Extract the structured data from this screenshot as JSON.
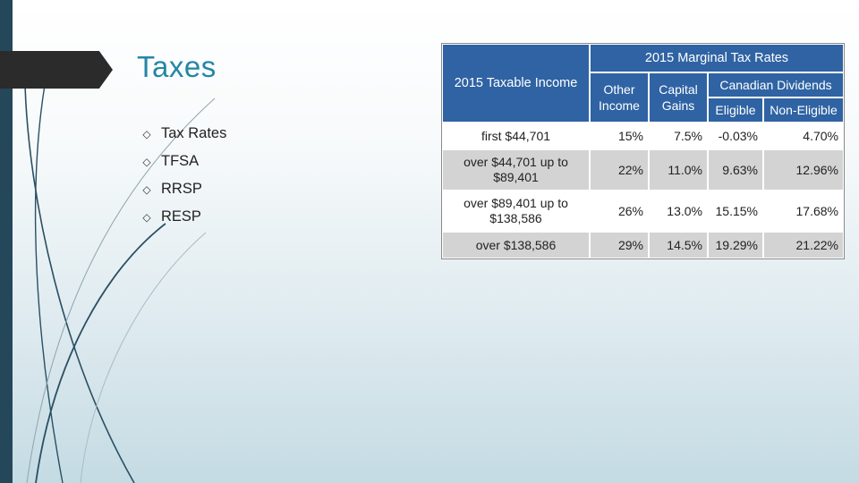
{
  "slide": {
    "title": "Taxes",
    "bullets": [
      {
        "label": "Tax Rates"
      },
      {
        "label": "TFSA"
      },
      {
        "label": "RRSP"
      },
      {
        "label": "RESP"
      }
    ],
    "bullet_icon": "diamond-outline-icon",
    "accent_color": "#2486a6",
    "sidebar_color": "#24475a"
  },
  "table": {
    "header_color": "#2f63a3",
    "header": {
      "income": "2015 Taxable Income",
      "group": "2015 Marginal Tax Rates",
      "other": "Other Income",
      "capital": "Capital Gains",
      "dividends": "Canadian Dividends",
      "eligible": "Eligible",
      "non_eligible": "Non-Eligible"
    },
    "rows": [
      {
        "income": "first $44,701",
        "other": "15%",
        "capital": "7.5%",
        "eligible": "-0.03%",
        "non_eligible": "4.70%"
      },
      {
        "income": "over $44,701 up to $89,401",
        "other": "22%",
        "capital": "11.0%",
        "eligible": "9.63%",
        "non_eligible": "12.96%"
      },
      {
        "income": "over $89,401 up to $138,586",
        "other": "26%",
        "capital": "13.0%",
        "eligible": "15.15%",
        "non_eligible": "17.68%"
      },
      {
        "income": "over $138,586",
        "other": "29%",
        "capital": "14.5%",
        "eligible": "19.29%",
        "non_eligible": "21.22%"
      }
    ]
  }
}
